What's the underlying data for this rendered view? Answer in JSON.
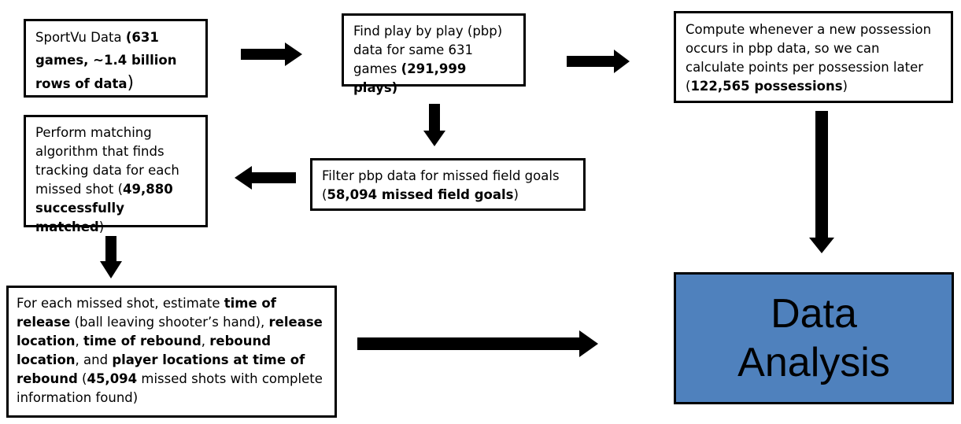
{
  "boxes": {
    "sportvu": {
      "t1": "SportVu Data ",
      "b1": "(631 games, ~1.4 billion rows of data",
      "t2": ")"
    },
    "find_pbp": {
      "t1": "Find play by play (pbp) data for same 631 games ",
      "b1": "(291,999 plays)"
    },
    "compute": {
      "t1": "Compute whenever a new possession occurs in pbp data, so we can calculate points per possession later (",
      "b1": "122,565 possessions",
      "t2": ")"
    },
    "matching": {
      "t1": "Perform matching algorithm that finds tracking data for each missed shot (",
      "b1": "49,880 successfully matched",
      "t2": ")"
    },
    "filter": {
      "t1": "Filter pbp data for missed field goals (",
      "b1": "58,094 missed field goals",
      "t2": ")"
    },
    "estimate": {
      "t1": "For each missed shot, estimate ",
      "b1": "time of release",
      "t2": " (ball leaving shooter’s hand), ",
      "b2": "release location",
      "t3": ", ",
      "b3": "time of rebound",
      "t4": ", ",
      "b4": "rebound location",
      "t5": ", and ",
      "b5": "player locations at time of rebound",
      "t6": " (",
      "b6": "45,094",
      "t7": " missed shots with complete information found)"
    }
  },
  "analysis": {
    "line1": "Data",
    "line2": "Analysis",
    "fill": "#4f81bd"
  }
}
